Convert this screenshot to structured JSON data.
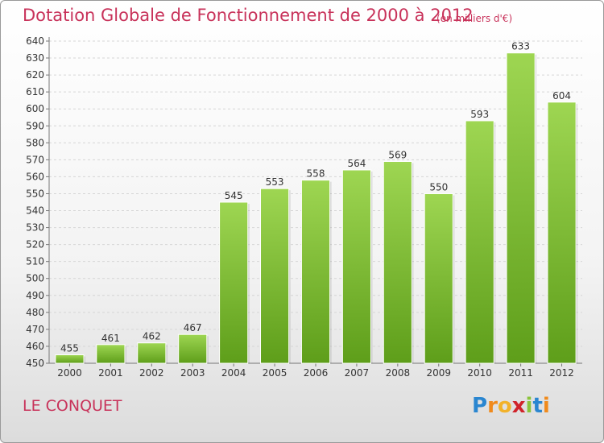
{
  "title": "Dotation Globale de Fonctionnement de 2000 à 2012",
  "subtitle": "(en milliers d'€)",
  "commune": "LE CONQUET",
  "logo": {
    "p": "P",
    "r": "r",
    "o": "o",
    "x": "x",
    "i1": "i",
    "t": "t",
    "i2": "i"
  },
  "colors": {
    "title": "#c8325a",
    "bar_top": "#9ed652",
    "bar_bottom": "#5e9e1a"
  },
  "chart_data": {
    "type": "bar",
    "categories": [
      "2000",
      "2001",
      "2002",
      "2003",
      "2004",
      "2005",
      "2006",
      "2007",
      "2008",
      "2009",
      "2010",
      "2011",
      "2012"
    ],
    "values": [
      455,
      461,
      462,
      467,
      545,
      553,
      558,
      564,
      569,
      550,
      593,
      633,
      604
    ],
    "ylim": [
      450,
      640
    ],
    "yticks": [
      450,
      460,
      470,
      480,
      490,
      500,
      510,
      520,
      530,
      540,
      550,
      560,
      570,
      580,
      590,
      600,
      610,
      620,
      630,
      640
    ],
    "grid": true,
    "xlabel": "",
    "ylabel": ""
  }
}
